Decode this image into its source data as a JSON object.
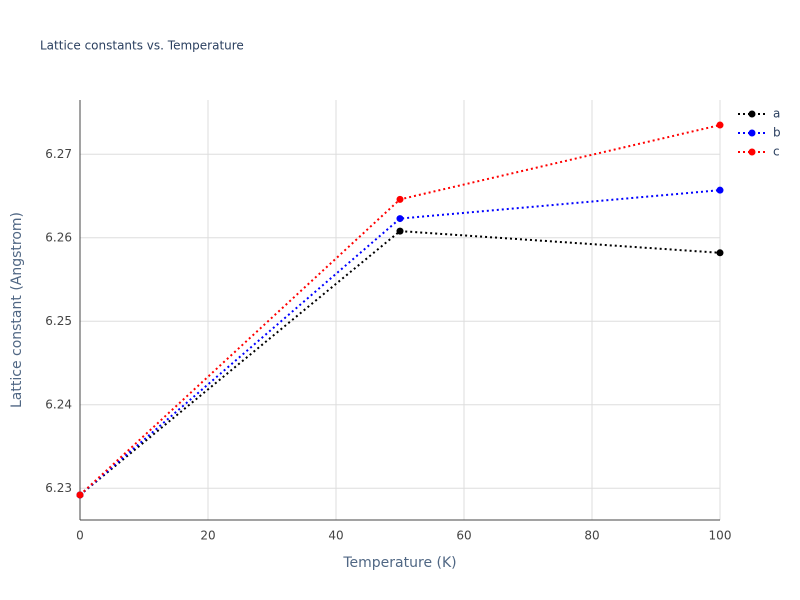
{
  "chart_data": {
    "type": "line",
    "title": "Lattice constants vs. Temperature",
    "x_label": "Temperature (K)",
    "y_label": "Lattice constant (Angstrom)",
    "x": [
      0,
      50,
      100
    ],
    "series": [
      {
        "name": "a",
        "color": "#000000",
        "values": [
          6.2292,
          6.2608,
          6.2582
        ]
      },
      {
        "name": "b",
        "color": "#0000ff",
        "values": [
          6.2292,
          6.2623,
          6.2657
        ]
      },
      {
        "name": "c",
        "color": "#ff0000",
        "values": [
          6.2292,
          6.2646,
          6.2735
        ]
      }
    ],
    "xlim": [
      0,
      100
    ],
    "xticks": [
      0,
      20,
      40,
      60,
      80,
      100
    ],
    "ylim": [
      6.2262,
      6.2765
    ],
    "yticks": [
      6.23,
      6.24,
      6.25,
      6.26,
      6.27
    ],
    "grid": true
  }
}
